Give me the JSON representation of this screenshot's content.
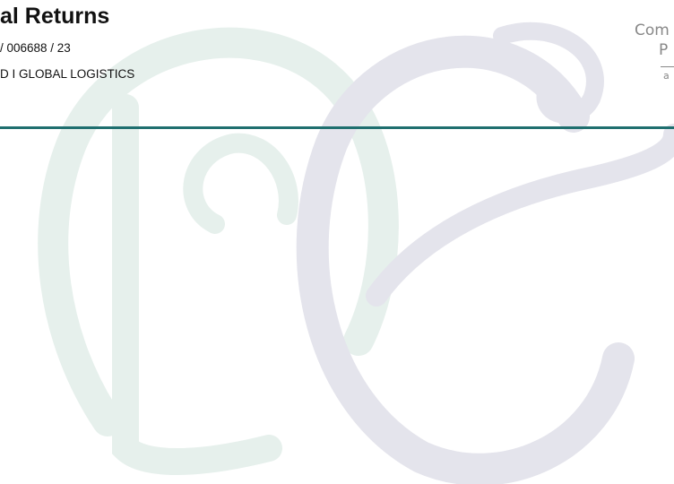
{
  "header": {
    "title": "al Returns",
    "reference": "/ 006688 / 23",
    "company": "D I GLOBAL LOGISTICS"
  },
  "logo": {
    "line1": "Com",
    "line2": "P",
    "line3": "a"
  }
}
